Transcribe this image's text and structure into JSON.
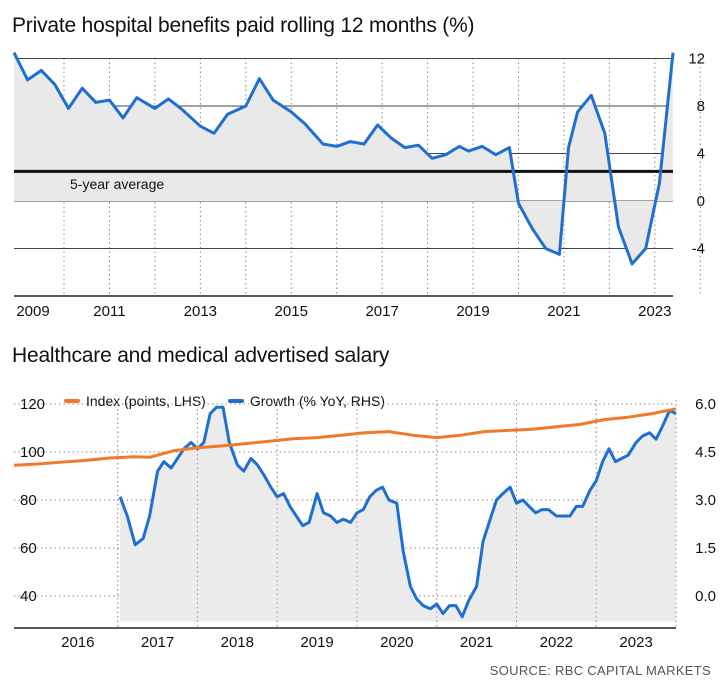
{
  "source": "SOURCE: RBC CAPITAL MARKETS",
  "colors": {
    "blue": "#1f6fd1",
    "orange": "#f07a2a",
    "fill": "#ececec",
    "grid": "#555555",
    "avg": "#111111"
  },
  "chart_data": [
    {
      "type": "line",
      "title": "Private hospital benefits paid rolling 12 months (%)",
      "x_ticks": [
        "2009",
        "2011",
        "2013",
        "2015",
        "2017",
        "2019",
        "2021",
        "2023"
      ],
      "y_ticks": [
        "12",
        "8",
        "4",
        "0",
        "-4"
      ],
      "ylim": [
        -8,
        13
      ],
      "reference_line": {
        "label": "5-year average",
        "value": 2.5
      },
      "series": [
        {
          "area_fill": true,
          "x": [
            2008.9,
            2009.2,
            2009.5,
            2009.8,
            2010.1,
            2010.4,
            2010.7,
            2011.0,
            2011.3,
            2011.6,
            2012.0,
            2012.3,
            2012.6,
            2013.0,
            2013.3,
            2013.6,
            2014.0,
            2014.3,
            2014.6,
            2015.0,
            2015.3,
            2015.7,
            2016.0,
            2016.3,
            2016.6,
            2016.9,
            2017.2,
            2017.5,
            2017.8,
            2018.1,
            2018.4,
            2018.7,
            2018.9,
            2019.2,
            2019.5,
            2019.8,
            2020.0,
            2020.3,
            2020.6,
            2020.9,
            2021.1,
            2021.3,
            2021.6,
            2021.9,
            2022.2,
            2022.5,
            2022.8,
            2023.1,
            2023.4
          ],
          "values": [
            12.5,
            10.2,
            11.0,
            9.8,
            7.8,
            9.5,
            8.3,
            8.5,
            7.0,
            8.7,
            7.8,
            8.6,
            7.7,
            6.3,
            5.7,
            7.3,
            8.0,
            10.3,
            8.5,
            7.5,
            6.5,
            4.8,
            4.6,
            5.0,
            4.8,
            6.4,
            5.3,
            4.5,
            4.7,
            3.6,
            3.9,
            4.6,
            4.2,
            4.6,
            3.9,
            4.5,
            -0.2,
            -2.3,
            -4.0,
            -4.5,
            4.5,
            7.5,
            8.9,
            5.7,
            -2.2,
            -5.3,
            -4.0,
            1.5,
            12.5
          ]
        }
      ]
    },
    {
      "type": "line",
      "title": "Healthcare and medical advertised salary",
      "x_ticks": [
        "2016",
        "2017",
        "2018",
        "2019",
        "2020",
        "2021",
        "2022",
        "2023"
      ],
      "y_left_ticks": [
        "120",
        "100",
        "80",
        "60",
        "40"
      ],
      "y_right_ticks": [
        "6.0",
        "4.5",
        "3.0",
        "1.5",
        "0.0"
      ],
      "ylim_left": [
        24,
        120
      ],
      "ylim_right": [
        -0.8,
        6.0
      ],
      "series": [
        {
          "name": "Index (points, LHS)",
          "axis": "left",
          "x": [
            2015.2,
            2015.5,
            2015.8,
            2016.1,
            2016.4,
            2016.7,
            2016.9,
            2017.2,
            2017.5,
            2017.8,
            2018.1,
            2018.4,
            2018.7,
            2019.0,
            2019.3,
            2019.6,
            2019.9,
            2020.2,
            2020.5,
            2020.8,
            2021.1,
            2021.4,
            2021.7,
            2022.0,
            2022.3,
            2022.6,
            2022.9,
            2023.2,
            2023.5
          ],
          "values": [
            94.5,
            95,
            95.8,
            96.5,
            97.5,
            98,
            97.8,
            100.5,
            101.8,
            102.5,
            103.5,
            104.5,
            105.5,
            106,
            107,
            108,
            108.5,
            107,
            106,
            107,
            108.5,
            109,
            109.5,
            110.5,
            111.5,
            113.5,
            114.5,
            116,
            118
          ]
        },
        {
          "name": "Growth (% YoY, RHS)",
          "axis": "right",
          "area_fill": true,
          "x": [
            2016.53,
            2016.62,
            2016.72,
            2016.82,
            2016.9,
            2017.0,
            2017.08,
            2017.17,
            2017.25,
            2017.33,
            2017.42,
            2017.5,
            2017.58,
            2017.66,
            2017.74,
            2017.82,
            2017.9,
            2018.0,
            2018.08,
            2018.17,
            2018.25,
            2018.33,
            2018.42,
            2018.5,
            2018.58,
            2018.66,
            2018.74,
            2018.82,
            2018.9,
            2019.0,
            2019.08,
            2019.17,
            2019.25,
            2019.33,
            2019.42,
            2019.5,
            2019.58,
            2019.66,
            2019.74,
            2019.82,
            2019.9,
            2020.0,
            2020.08,
            2020.17,
            2020.25,
            2020.33,
            2020.42,
            2020.5,
            2020.58,
            2020.66,
            2020.74,
            2020.82,
            2020.9,
            2021.0,
            2021.08,
            2021.17,
            2021.25,
            2021.33,
            2021.42,
            2021.5,
            2021.58,
            2021.66,
            2021.74,
            2021.82,
            2021.9,
            2022.0,
            2022.08,
            2022.17,
            2022.25,
            2022.33,
            2022.42,
            2022.5,
            2022.58,
            2022.66,
            2022.74,
            2022.82,
            2022.9,
            2023.0,
            2023.08,
            2023.17,
            2023.25,
            2023.33,
            2023.42,
            2023.5
          ],
          "values": [
            3.1,
            2.5,
            1.6,
            1.8,
            2.5,
            3.9,
            4.2,
            4.0,
            4.3,
            4.6,
            4.8,
            4.6,
            4.8,
            5.7,
            5.9,
            5.9,
            4.8,
            4.1,
            3.9,
            4.3,
            4.1,
            3.8,
            3.4,
            3.1,
            3.2,
            2.8,
            2.5,
            2.2,
            2.3,
            3.2,
            2.6,
            2.5,
            2.3,
            2.4,
            2.3,
            2.6,
            2.7,
            3.1,
            3.3,
            3.4,
            3.0,
            2.9,
            1.4,
            0.3,
            -0.1,
            -0.3,
            -0.4,
            -0.25,
            -0.55,
            -0.3,
            -0.3,
            -0.65,
            -0.15,
            0.3,
            1.7,
            2.4,
            3.0,
            3.2,
            3.4,
            2.9,
            3.0,
            2.8,
            2.6,
            2.7,
            2.7,
            2.5,
            2.5,
            2.5,
            2.8,
            2.8,
            3.3,
            3.6,
            4.2,
            4.6,
            4.2,
            4.3,
            4.4,
            4.8,
            5.0,
            5.1,
            4.9,
            5.3,
            5.8,
            5.7
          ]
        }
      ]
    }
  ]
}
